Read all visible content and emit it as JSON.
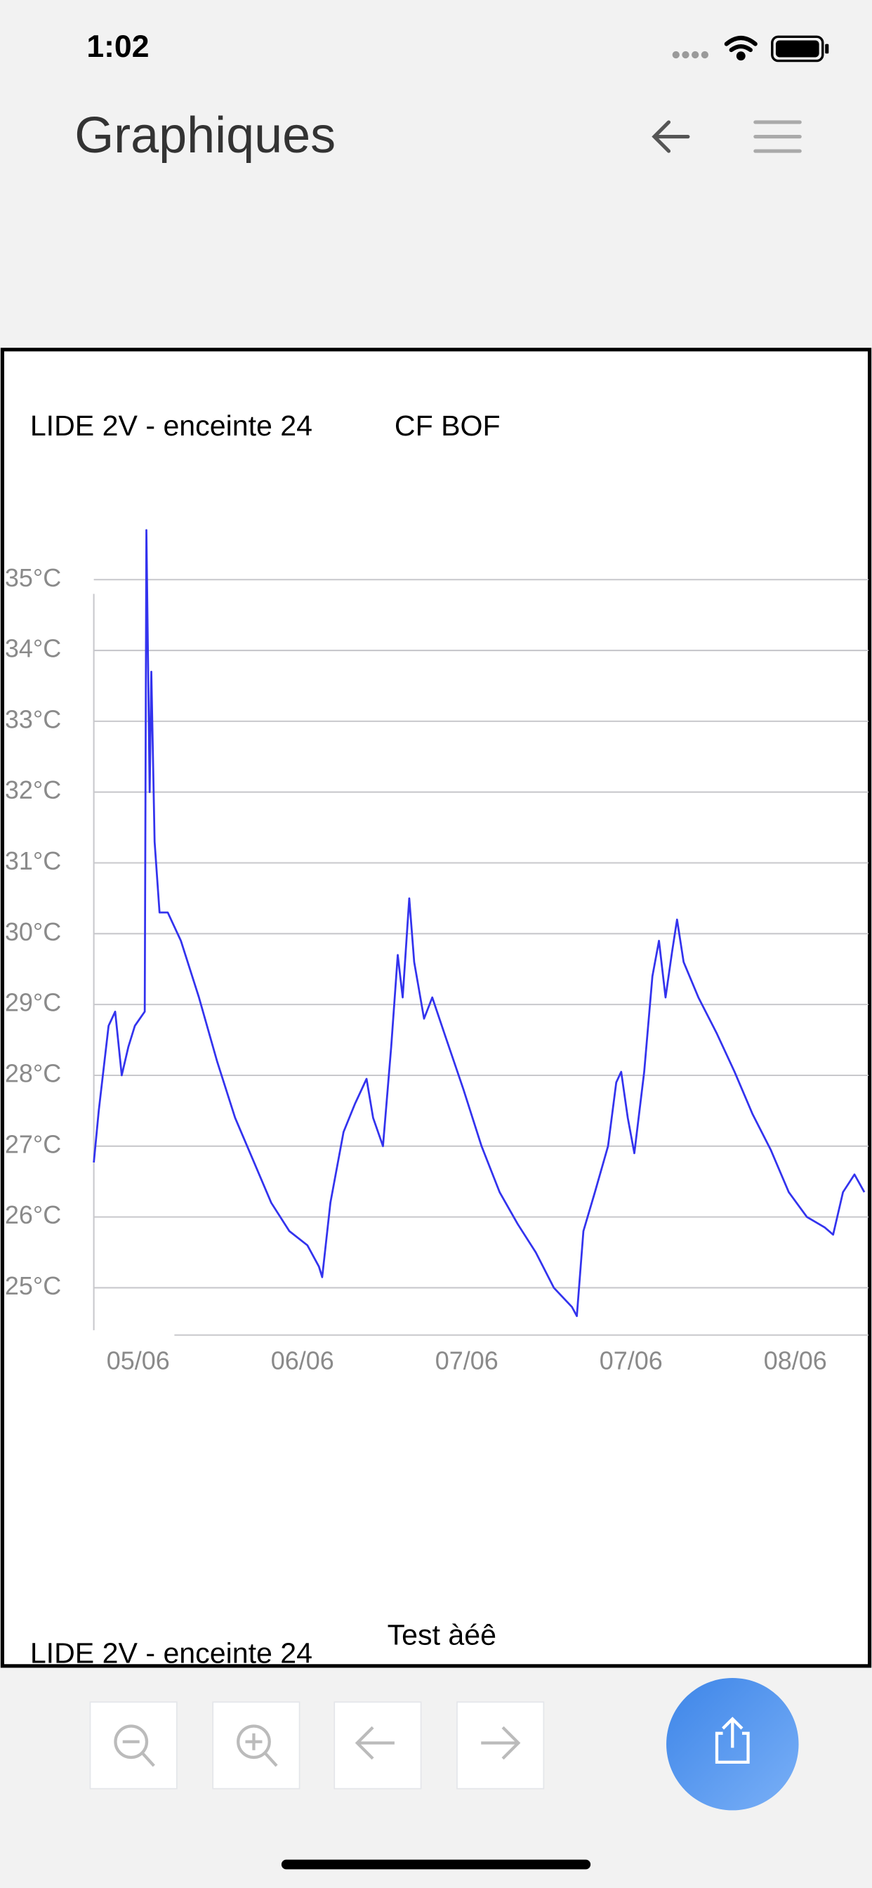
{
  "status_bar": {
    "time": "1:02"
  },
  "header": {
    "title": "Graphiques"
  },
  "chart_data": {
    "type": "line",
    "title": "LIDE 2V - enceinte 24",
    "x": [
      -0.27,
      -0.24,
      -0.18,
      -0.14,
      -0.1,
      -0.06,
      -0.02,
      0.01,
      0.04,
      0.05,
      0.07,
      0.08,
      0.1,
      0.13,
      0.18,
      0.26,
      0.37,
      0.48,
      0.59,
      0.7,
      0.81,
      0.92,
      1.03,
      1.1,
      1.12,
      1.17,
      1.25,
      1.32,
      1.39,
      1.43,
      1.49,
      1.54,
      1.58,
      1.61,
      1.65,
      1.68,
      1.74,
      1.79,
      1.87,
      1.98,
      2.09,
      2.2,
      2.31,
      2.42,
      2.53,
      2.64,
      2.67,
      2.71,
      2.78,
      2.86,
      2.91,
      2.94,
      2.98,
      3.02,
      3.08,
      3.13,
      3.17,
      3.21,
      3.25,
      3.28,
      3.32,
      3.41,
      3.52,
      3.63,
      3.74,
      3.85,
      3.96,
      4.07,
      4.18,
      4.23,
      4.29,
      4.36,
      4.42
    ],
    "series": [
      {
        "name": "CF BOF",
        "color": "#3333ee",
        "values": [
          26.77,
          27.5,
          28.7,
          28.9,
          28.0,
          28.4,
          28.7,
          28.8,
          28.9,
          35.7,
          32.0,
          33.7,
          31.3,
          30.3,
          30.3,
          29.9,
          29.1,
          28.2,
          27.4,
          26.8,
          26.2,
          25.8,
          25.6,
          25.3,
          25.15,
          26.2,
          27.2,
          27.6,
          27.95,
          27.4,
          27.0,
          28.4,
          29.7,
          29.1,
          30.5,
          29.6,
          28.8,
          29.1,
          28.55,
          27.8,
          27.0,
          26.35,
          25.9,
          25.5,
          25.0,
          24.73,
          24.6,
          25.8,
          26.35,
          27.0,
          27.9,
          28.05,
          27.4,
          26.9,
          28.05,
          29.4,
          29.9,
          29.1,
          29.75,
          30.2,
          29.6,
          29.1,
          28.6,
          28.05,
          27.45,
          26.95,
          26.35,
          26.0,
          25.85,
          25.75,
          26.35,
          26.6,
          26.35
        ]
      }
    ],
    "xlim": [
      -0.27,
      4.43
    ],
    "xticks": [
      {
        "value": 0,
        "label": "05/06"
      },
      {
        "value": 1,
        "label": "06/06"
      },
      {
        "value": 2,
        "label": "07/06"
      },
      {
        "value": 3,
        "label": "07/06"
      },
      {
        "value": 4,
        "label": "08/06"
      }
    ],
    "ylim": [
      24.4,
      35.7
    ],
    "yticks": [
      {
        "value": 25,
        "label": "25°C"
      },
      {
        "value": 26,
        "label": "26°C"
      },
      {
        "value": 27,
        "label": "27°C"
      },
      {
        "value": 28,
        "label": "28°C"
      },
      {
        "value": 29,
        "label": "29°C"
      },
      {
        "value": 30,
        "label": "30°C"
      },
      {
        "value": 31,
        "label": "31°C"
      },
      {
        "value": 32,
        "label": "32°C"
      },
      {
        "value": 33,
        "label": "33°C"
      },
      {
        "value": 34,
        "label": "34°C"
      },
      {
        "value": 35,
        "label": "35°C"
      }
    ],
    "grid": true
  },
  "next_chart": {
    "title": "LIDE 2V - enceinte 24",
    "series_name": "Test àéê"
  }
}
